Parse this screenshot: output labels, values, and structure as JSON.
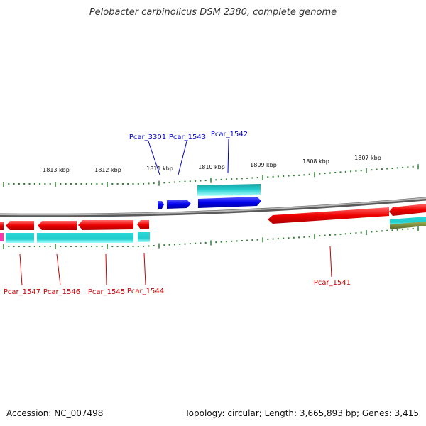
{
  "title": "Pelobacter carbinolicus DSM 2380, complete genome",
  "footer": {
    "accession": "Accession: NC_007498",
    "topology": "Topology: circular; Length: 3,665,893 bp; Genes: 3,415"
  },
  "colors": {
    "backbone": "#8c8c8c",
    "tick": "#2e7d32",
    "gene_forward": "#0000ee",
    "gene_reverse": "#ee0000",
    "cds_feature": "#22cccc",
    "label_forward": "#0000c8",
    "label_reverse": "#c80000"
  },
  "scale": {
    "unit": "kbp",
    "labels": [
      "1813 kbp",
      "1812 kbp",
      "1811 kbp",
      "1810 kbp",
      "1809 kbp",
      "1808 kbp",
      "1807 kbp"
    ]
  },
  "genes_forward": [
    {
      "name": "Pcar_3301"
    },
    {
      "name": "Pcar_1543"
    },
    {
      "name": "Pcar_1542"
    }
  ],
  "genes_reverse": [
    {
      "name": "Pcar_1547"
    },
    {
      "name": "Pcar_1546"
    },
    {
      "name": "Pcar_1545"
    },
    {
      "name": "Pcar_1544"
    },
    {
      "name": "Pcar_1541"
    }
  ]
}
